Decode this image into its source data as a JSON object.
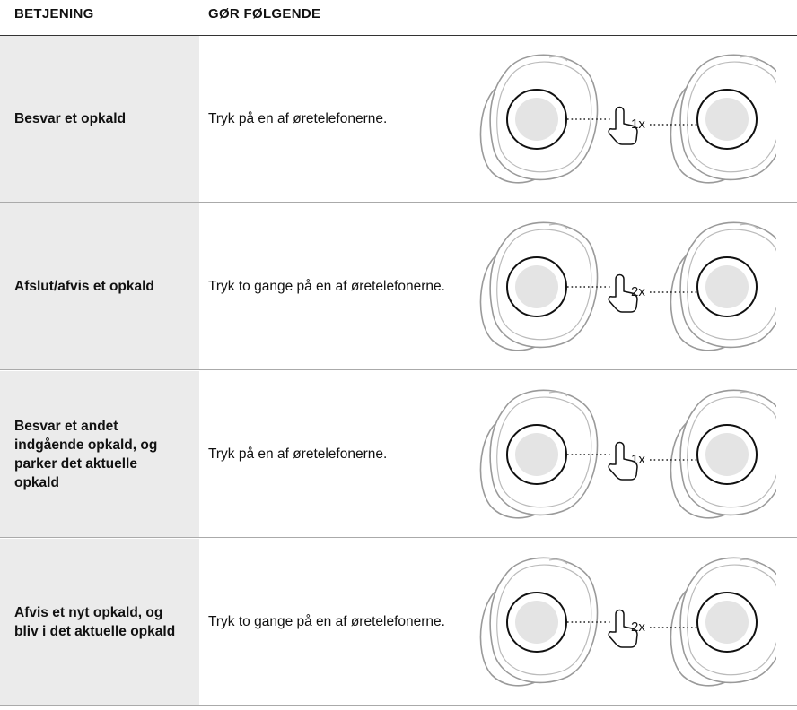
{
  "header": {
    "col1": "BETJENING",
    "col2": "GØR FØLGENDE"
  },
  "rows": [
    {
      "control": "Besvar et opkald",
      "action": "Tryk på en af øretelefonerne.",
      "tap": "1x"
    },
    {
      "control": "Afslut/afvis et opkald",
      "action": "Tryk to gange på en af øretelefonerne.",
      "tap": "2x"
    },
    {
      "control": "Besvar et andet indgående opkald, og parker det aktuelle opkald",
      "action": "Tryk på en af øretelefonerne.",
      "tap": "1x"
    },
    {
      "control": "Afvis et nyt opkald, og bliv i det aktuelle opkald",
      "action": "Tryk to gange på en af øretelefonerne.",
      "tap": "2x"
    }
  ]
}
